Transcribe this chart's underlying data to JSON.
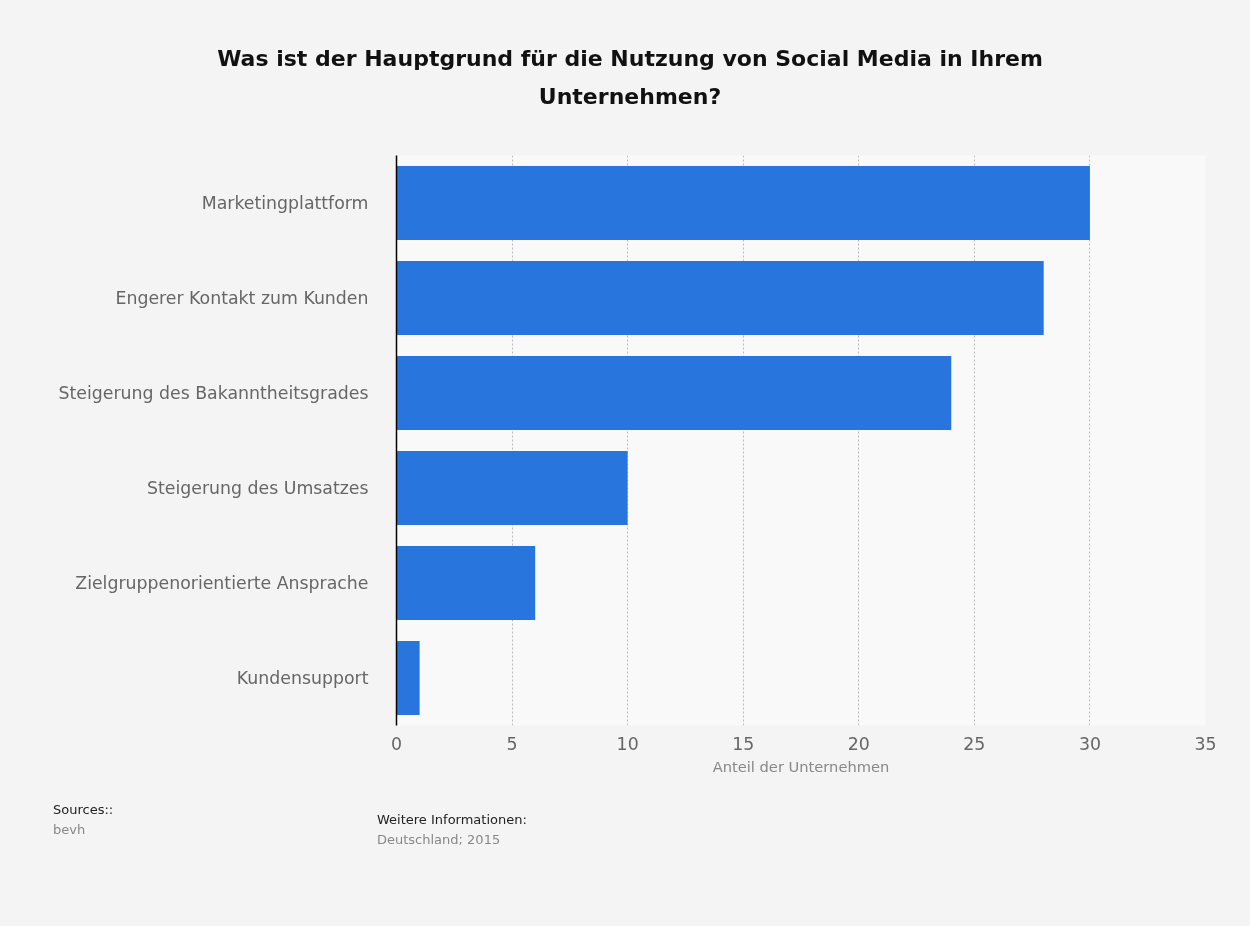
{
  "chart_data": {
    "type": "bar",
    "orientation": "horizontal",
    "title": "Was ist der Hauptgrund für die Nutzung von Social Media in Ihrem Unternehmen?",
    "xlabel": "Anteil der Unternehmen",
    "categories": [
      "Marketingplattform",
      "Engerer Kontakt zum Kunden",
      "Steigerung des Bakanntheitsgrades",
      "Steigerung des Umsatzes",
      "Zielgruppenorientierte Ansprache",
      "Kundensupport"
    ],
    "values": [
      30,
      28,
      24,
      10,
      6,
      1
    ],
    "color": "#2876dd",
    "xlim": [
      0,
      35
    ],
    "xticks": [
      0,
      5,
      10,
      15,
      20,
      25,
      30,
      35
    ],
    "grid": "x",
    "annotations": [
      "Sources::",
      "bevh",
      "Weitere Informationen:",
      "Deutschland; 2015"
    ]
  }
}
